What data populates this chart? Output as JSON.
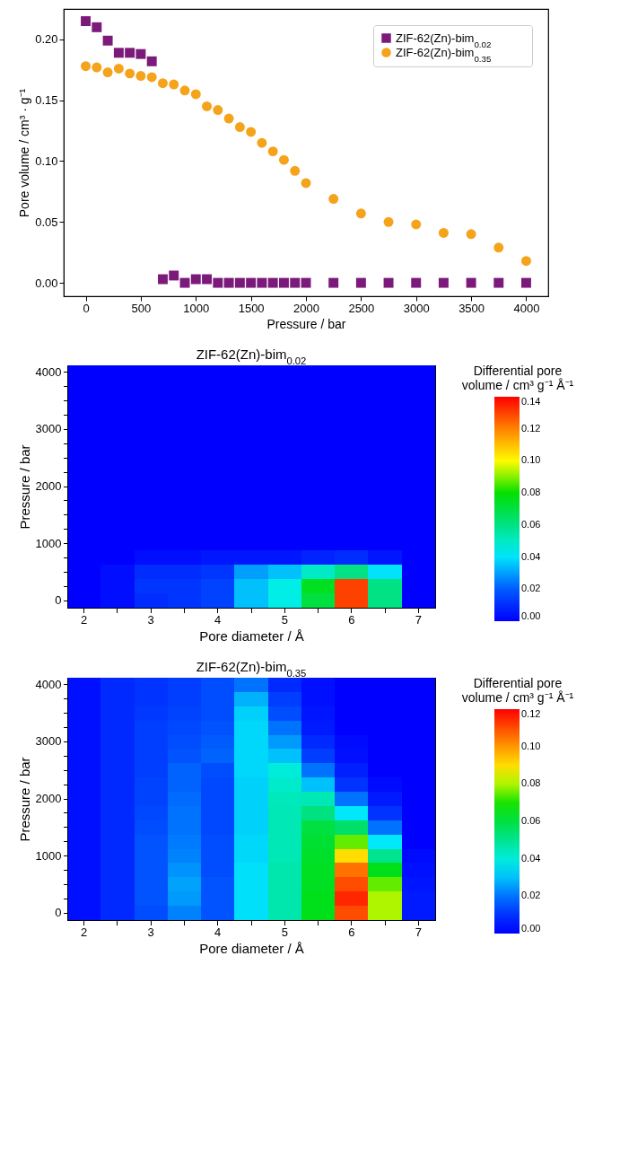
{
  "chart_data": [
    {
      "type": "scatter",
      "xlabel": "Pressure   /   bar",
      "ylabel": "Pore volume   /   cm³ · g⁻¹",
      "legend": "top right",
      "x": [
        0,
        100,
        200,
        300,
        400,
        500,
        600,
        700,
        800,
        900,
        1000,
        1100,
        1200,
        1300,
        1400,
        1500,
        1600,
        1700,
        1800,
        1900,
        2000,
        2250,
        2500,
        2750,
        3000,
        3250,
        3500,
        3750,
        4000
      ],
      "series": [
        {
          "name": "ZIF-62(Zn)-bim$_{0.02}$",
          "color": "#7b1a7a",
          "marker": "square",
          "values": [
            0.215,
            0.21,
            0.199,
            0.189,
            0.189,
            0.188,
            0.182,
            0.003,
            0.006,
            0,
            0.003,
            0.003,
            0,
            0,
            0,
            0,
            0,
            0,
            0,
            0,
            0,
            0,
            0,
            0,
            0,
            0,
            0,
            0,
            0
          ]
        },
        {
          "name": "ZIF-62(Zn)-bim$_{0.35}$",
          "color": "#f5a31a",
          "marker": "circle",
          "values": [
            0.178,
            0.177,
            0.173,
            0.176,
            0.172,
            0.17,
            0.169,
            0.164,
            0.163,
            0.158,
            0.155,
            0.145,
            0.142,
            0.135,
            0.128,
            0.124,
            0.115,
            0.108,
            0.101,
            0.092,
            0.082,
            0.069,
            0.057,
            0.05,
            0.048,
            0.041,
            0.04,
            0.029,
            0.018
          ]
        }
      ],
      "xlim": [
        -200,
        4200
      ],
      "ylim": [
        -0.011,
        0.225
      ],
      "xticks": [
        0,
        500,
        1000,
        1500,
        2000,
        2500,
        3000,
        3500,
        4000
      ],
      "yticks": [
        {
          "value": 0,
          "label": "0.00"
        },
        {
          "value": 0.05,
          "label": "0.05"
        },
        {
          "value": 0.1,
          "label": "0.10"
        },
        {
          "value": 0.15,
          "label": "0.15"
        },
        {
          "value": 0.2,
          "label": "0.20"
        }
      ]
    },
    {
      "type": "heatmap",
      "title": "ZIF-62(Zn)-bim$_{0.02}$",
      "xlabel": "Pore diameter / Å",
      "ylabel": "Pressure / bar",
      "clabel": "Differential pore volume / cm³ g⁻¹ Å⁻¹",
      "categories": [
        "2",
        null,
        "3",
        null,
        "4",
        null,
        "5",
        null,
        "6",
        null,
        "7"
      ],
      "y_categories": [
        "4000",
        null,
        null,
        null,
        "3000",
        null,
        null,
        null,
        "2000",
        null,
        null,
        null,
        "1000",
        null,
        null,
        null,
        "0"
      ],
      "cells": [
        [
          0,
          0,
          0,
          0,
          0,
          0,
          0,
          0,
          0,
          0,
          0
        ],
        [
          0,
          0,
          0,
          0,
          0,
          0,
          0,
          0,
          0,
          0,
          0
        ],
        [
          0,
          0,
          0,
          0,
          0,
          0,
          0,
          0,
          0,
          0,
          0
        ],
        [
          0,
          0,
          0,
          0,
          0,
          0,
          0,
          0,
          0,
          0,
          0
        ],
        [
          0,
          0,
          0,
          0,
          0,
          0,
          0,
          0,
          0,
          0,
          0
        ],
        [
          0,
          0,
          0,
          0,
          0,
          0,
          0,
          0,
          0,
          0,
          0
        ],
        [
          0,
          0,
          0,
          0,
          0,
          0,
          0,
          0,
          0,
          0,
          0
        ],
        [
          0,
          0,
          0,
          0,
          0,
          0,
          0,
          0,
          0,
          0,
          0
        ],
        [
          0,
          0,
          0,
          0,
          0,
          0,
          0,
          0,
          0,
          0,
          0
        ],
        [
          0,
          0,
          0,
          0,
          0,
          0,
          0,
          0,
          0,
          0,
          0
        ],
        [
          0,
          0,
          0,
          0,
          0,
          0,
          0,
          0,
          0,
          0,
          0
        ],
        [
          0,
          0,
          0,
          0,
          0,
          0,
          0,
          0,
          0,
          0,
          0
        ],
        [
          0,
          0,
          0,
          0,
          0,
          0,
          0,
          0,
          0,
          0,
          0
        ],
        [
          0,
          0,
          0.003,
          0.003,
          0.005,
          0.005,
          0.005,
          0.008,
          0.01,
          0.005,
          0
        ],
        [
          0,
          0.003,
          0.01,
          0.01,
          0.012,
          0.03,
          0.035,
          0.05,
          0.06,
          0.04,
          0
        ],
        [
          0,
          0.003,
          0.012,
          0.012,
          0.015,
          0.035,
          0.045,
          0.075,
          0.13,
          0.06,
          0
        ],
        [
          0,
          0.003,
          0.01,
          0.012,
          0.015,
          0.035,
          0.045,
          0.07,
          0.13,
          0.06,
          0
        ]
      ],
      "clim": [
        0,
        0.14
      ],
      "cticks": [
        {
          "value": 0,
          "label": "0.00"
        },
        {
          "value": 0.02,
          "label": "0.02"
        },
        {
          "value": 0.04,
          "label": "0.04"
        },
        {
          "value": 0.06,
          "label": "0.06"
        },
        {
          "value": 0.08,
          "label": "0.08"
        },
        {
          "value": 0.1,
          "label": "0.10"
        },
        {
          "value": 0.12,
          "label": "0.12"
        },
        {
          "value": 0.14,
          "label": "0.14"
        }
      ]
    },
    {
      "type": "heatmap",
      "title": "ZIF-62(Zn)-bim$_{0.35}$",
      "xlabel": "Pore diameter / Å",
      "ylabel": "Pressure / bar",
      "clabel": "Differential pore volume / cm³ g⁻¹ Å⁻¹",
      "categories": [
        "2",
        null,
        "3",
        null,
        "4",
        null,
        "5",
        null,
        "6",
        null,
        "7"
      ],
      "y_categories": [
        "4000",
        null,
        null,
        null,
        "3000",
        null,
        null,
        null,
        "2000",
        null,
        null,
        null,
        "1000",
        null,
        null,
        null,
        "0"
      ],
      "cells": [
        [
          0.003,
          0.008,
          0.01,
          0.012,
          0.015,
          0.02,
          0.008,
          0.003,
          0,
          0,
          0
        ],
        [
          0.003,
          0.008,
          0.01,
          0.012,
          0.015,
          0.028,
          0.012,
          0.003,
          0,
          0,
          0
        ],
        [
          0.003,
          0.008,
          0.011,
          0.013,
          0.015,
          0.032,
          0.015,
          0.004,
          0,
          0,
          0
        ],
        [
          0.003,
          0.008,
          0.012,
          0.014,
          0.016,
          0.033,
          0.02,
          0.005,
          0,
          0,
          0
        ],
        [
          0.003,
          0.008,
          0.012,
          0.015,
          0.017,
          0.033,
          0.025,
          0.008,
          0.002,
          0,
          0
        ],
        [
          0.003,
          0.008,
          0.012,
          0.016,
          0.018,
          0.033,
          0.03,
          0.012,
          0.003,
          0,
          0
        ],
        [
          0.003,
          0.008,
          0.012,
          0.018,
          0.015,
          0.033,
          0.04,
          0.02,
          0.006,
          0,
          0
        ],
        [
          0.003,
          0.008,
          0.013,
          0.018,
          0.014,
          0.032,
          0.042,
          0.03,
          0.01,
          0.002,
          0
        ],
        [
          0.003,
          0.008,
          0.013,
          0.019,
          0.014,
          0.032,
          0.044,
          0.045,
          0.02,
          0.005,
          0
        ],
        [
          0.003,
          0.008,
          0.014,
          0.02,
          0.014,
          0.032,
          0.045,
          0.052,
          0.035,
          0.01,
          0
        ],
        [
          0.003,
          0.008,
          0.015,
          0.02,
          0.014,
          0.032,
          0.045,
          0.06,
          0.055,
          0.02,
          0
        ],
        [
          0.003,
          0.008,
          0.016,
          0.021,
          0.015,
          0.033,
          0.045,
          0.062,
          0.075,
          0.035,
          0
        ],
        [
          0.003,
          0.008,
          0.016,
          0.022,
          0.015,
          0.033,
          0.045,
          0.063,
          0.09,
          0.05,
          0.002
        ],
        [
          0.003,
          0.008,
          0.016,
          0.024,
          0.015,
          0.034,
          0.046,
          0.064,
          0.105,
          0.065,
          0.003
        ],
        [
          0.003,
          0.008,
          0.016,
          0.026,
          0.016,
          0.034,
          0.046,
          0.064,
          0.11,
          0.075,
          0.004
        ],
        [
          0.003,
          0.008,
          0.016,
          0.025,
          0.016,
          0.034,
          0.046,
          0.065,
          0.115,
          0.08,
          0.005
        ],
        [
          0.003,
          0.008,
          0.015,
          0.022,
          0.016,
          0.034,
          0.046,
          0.065,
          0.11,
          0.08,
          0.005
        ]
      ],
      "clim": [
        0,
        0.12
      ],
      "cticks": [
        {
          "value": 0,
          "label": "0.00"
        },
        {
          "value": 0.02,
          "label": "0.02"
        },
        {
          "value": 0.04,
          "label": "0.04"
        },
        {
          "value": 0.06,
          "label": "0.06"
        },
        {
          "value": 0.08,
          "label": "0.08"
        },
        {
          "value": 0.1,
          "label": "0.10"
        },
        {
          "value": 0.12,
          "label": "0.12"
        }
      ]
    }
  ]
}
